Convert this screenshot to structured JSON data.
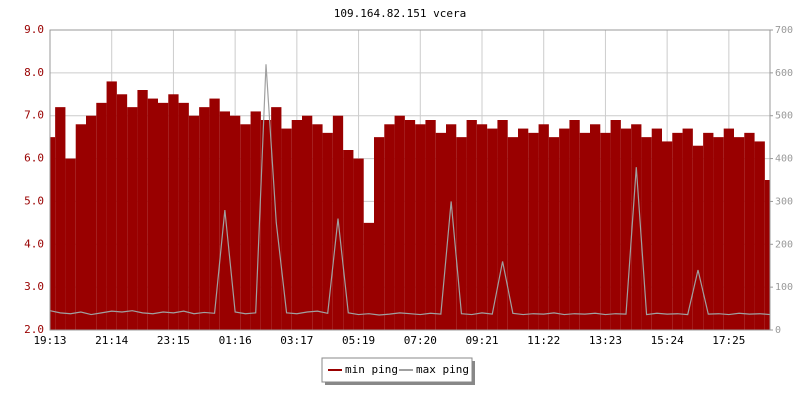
{
  "chart_data": {
    "type": "bar-line",
    "title": "109.164.82.151 vcera",
    "categories": [
      "19:13",
      null,
      null,
      null,
      null,
      null,
      "21:14",
      null,
      null,
      null,
      null,
      null,
      "23:15",
      null,
      null,
      null,
      null,
      null,
      "01:16",
      null,
      null,
      null,
      null,
      null,
      "03:17",
      null,
      null,
      null,
      null,
      null,
      "05:19",
      null,
      null,
      null,
      null,
      null,
      "07:20",
      null,
      null,
      null,
      null,
      null,
      "09:21",
      null,
      null,
      null,
      null,
      null,
      "11:22",
      null,
      null,
      null,
      null,
      null,
      "13:23",
      null,
      null,
      null,
      null,
      null,
      "15:24",
      null,
      null,
      null,
      null,
      null,
      "17:25",
      null,
      null,
      null,
      null
    ],
    "series": [
      {
        "name": "min ping",
        "color": "#990000",
        "values": [
          6.5,
          7.2,
          6.0,
          6.8,
          7.0,
          7.3,
          7.8,
          7.5,
          7.2,
          7.6,
          7.4,
          7.3,
          7.5,
          7.3,
          7.0,
          7.2,
          7.4,
          7.1,
          7.0,
          6.8,
          7.1,
          6.9,
          7.2,
          6.7,
          6.9,
          7.0,
          6.8,
          6.6,
          7.0,
          6.2,
          6.0,
          4.5,
          6.5,
          6.8,
          7.0,
          6.9,
          6.8,
          6.9,
          6.6,
          6.8,
          6.5,
          6.9,
          6.8,
          6.7,
          6.9,
          6.5,
          6.7,
          6.6,
          6.8,
          6.5,
          6.7,
          6.9,
          6.6,
          6.8,
          6.6,
          6.9,
          6.7,
          6.8,
          6.5,
          6.7,
          6.4,
          6.6,
          6.7,
          6.3,
          6.6,
          6.5,
          6.7,
          6.5,
          6.6,
          6.4,
          5.5
        ]
      },
      {
        "name": "max ping",
        "color": "#a0a0a0",
        "axis": "y2",
        "values": [
          45,
          40,
          38,
          42,
          36,
          40,
          44,
          42,
          45,
          40,
          38,
          42,
          40,
          44,
          38,
          41,
          39,
          280,
          42,
          38,
          40,
          620,
          250,
          40,
          38,
          42,
          44,
          39,
          260,
          40,
          36,
          38,
          35,
          37,
          40,
          38,
          36,
          39,
          37,
          300,
          38,
          36,
          40,
          37,
          160,
          39,
          36,
          38,
          37,
          40,
          36,
          38,
          37,
          39,
          36,
          38,
          37,
          380,
          36,
          39,
          37,
          38,
          36,
          140,
          37,
          38,
          36,
          39,
          37,
          38,
          36
        ]
      }
    ],
    "ylim": [
      2,
      9
    ],
    "yticks": [
      {
        "value": 2,
        "label": "2.0"
      },
      {
        "value": 3,
        "label": "3.0"
      },
      {
        "value": 4,
        "label": "4.0"
      },
      {
        "value": 5,
        "label": "5.0"
      },
      {
        "value": 6,
        "label": "6.0"
      },
      {
        "value": 7,
        "label": "7.0"
      },
      {
        "value": 8,
        "label": "8.0"
      },
      {
        "value": 9,
        "label": "9.0"
      }
    ],
    "y2lim": [
      0,
      700
    ],
    "y2ticks": [
      0,
      100,
      200,
      300,
      400,
      500,
      600,
      700
    ],
    "grid": true
  }
}
